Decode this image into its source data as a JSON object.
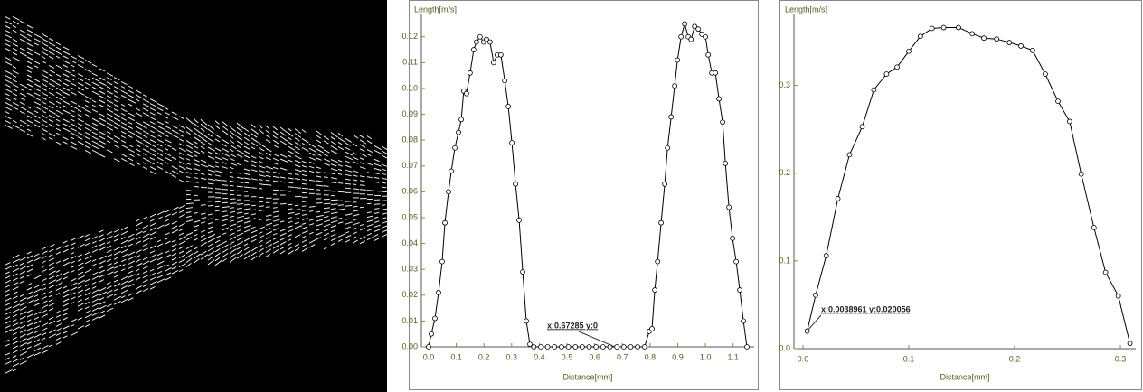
{
  "chart_data": [
    {
      "type": "line",
      "color": "#000000",
      "x_label": "Distance[mm]",
      "y_label": "Length[m/s]",
      "annotation": "x:0.67285 y:0",
      "x": [
        0.0,
        0.01,
        0.023,
        0.036,
        0.049,
        0.059,
        0.072,
        0.082,
        0.095,
        0.108,
        0.118,
        0.127,
        0.137,
        0.15,
        0.163,
        0.173,
        0.186,
        0.199,
        0.209,
        0.222,
        0.235,
        0.248,
        0.261,
        0.275,
        0.288,
        0.301,
        0.314,
        0.327,
        0.34,
        0.353,
        0.366,
        0.38,
        0.405,
        0.43,
        0.455,
        0.48,
        0.505,
        0.53,
        0.555,
        0.58,
        0.605,
        0.63,
        0.655,
        0.68,
        0.705,
        0.73,
        0.755,
        0.78,
        0.797,
        0.807,
        0.817,
        0.827,
        0.84,
        0.853,
        0.863,
        0.876,
        0.889,
        0.899,
        0.912,
        0.925,
        0.938,
        0.948,
        0.961,
        0.974,
        0.987,
        1.0,
        1.01,
        1.023,
        1.036,
        1.049,
        1.062,
        1.072,
        1.085,
        1.098,
        1.111,
        1.124,
        1.137,
        1.15
      ],
      "values": [
        0,
        0.005,
        0.011,
        0.021,
        0.033,
        0.048,
        0.06,
        0.068,
        0.077,
        0.083,
        0.088,
        0.099,
        0.098,
        0.106,
        0.115,
        0.118,
        0.12,
        0.118,
        0.119,
        0.118,
        0.11,
        0.113,
        0.113,
        0.103,
        0.093,
        0.079,
        0.063,
        0.049,
        0.029,
        0.01,
        0.001,
        0,
        0,
        0,
        0,
        0,
        0,
        0,
        0,
        0,
        0,
        0,
        0,
        0,
        0,
        0,
        0,
        0,
        0.006,
        0.007,
        0.022,
        0.033,
        0.048,
        0.063,
        0.077,
        0.089,
        0.101,
        0.111,
        0.12,
        0.125,
        0.12,
        0.119,
        0.124,
        0.123,
        0.121,
        0.12,
        0.113,
        0.106,
        0.106,
        0.096,
        0.087,
        0.071,
        0.054,
        0.042,
        0.033,
        0.022,
        0.01,
        0
      ],
      "xlim": [
        -0.026,
        1.176
      ],
      "ylim": [
        0,
        0.129
      ],
      "xticks": [
        {
          "value": 0,
          "label": "0.0"
        },
        0.1,
        0.2,
        0.3,
        0.4,
        0.5,
        0.6,
        0.7,
        0.8,
        0.9,
        {
          "value": 1,
          "label": "1.0"
        },
        1.1
      ],
      "yticks": [
        {
          "value": 0,
          "label": "0.00"
        },
        0.01,
        0.02,
        0.03,
        0.04,
        0.05,
        0.06,
        0.07,
        0.08,
        0.09,
        {
          "value": 0.1,
          "label": "0.10"
        },
        0.11,
        0.12
      ]
    },
    {
      "type": "line",
      "color": "#000000",
      "x_label": "Distance[mm]",
      "y_label": "Length[m/s]",
      "annotation": "x:0.0038961 y:0.020056",
      "x": [
        0.004,
        0.012,
        0.022,
        0.033,
        0.044,
        0.056,
        0.067,
        0.079,
        0.089,
        0.1,
        0.111,
        0.122,
        0.133,
        0.147,
        0.16,
        0.171,
        0.183,
        0.195,
        0.206,
        0.217,
        0.229,
        0.241,
        0.252,
        0.263,
        0.275,
        0.286,
        0.298,
        0.309
      ],
      "values": [
        0.02,
        0.061,
        0.106,
        0.171,
        0.221,
        0.253,
        0.295,
        0.313,
        0.321,
        0.339,
        0.356,
        0.365,
        0.366,
        0.366,
        0.359,
        0.354,
        0.353,
        0.349,
        0.345,
        0.34,
        0.313,
        0.282,
        0.259,
        0.199,
        0.138,
        0.087,
        0.06,
        0.006
      ],
      "xlim": [
        -0.0085,
        0.3145
      ],
      "ylim": [
        0,
        0.382
      ],
      "xticks": [
        {
          "value": 0,
          "label": "0.0"
        },
        0.1,
        0.2,
        0.3
      ],
      "yticks": [
        {
          "value": 0,
          "label": "0.0"
        },
        0.1,
        0.2,
        0.3
      ]
    }
  ]
}
